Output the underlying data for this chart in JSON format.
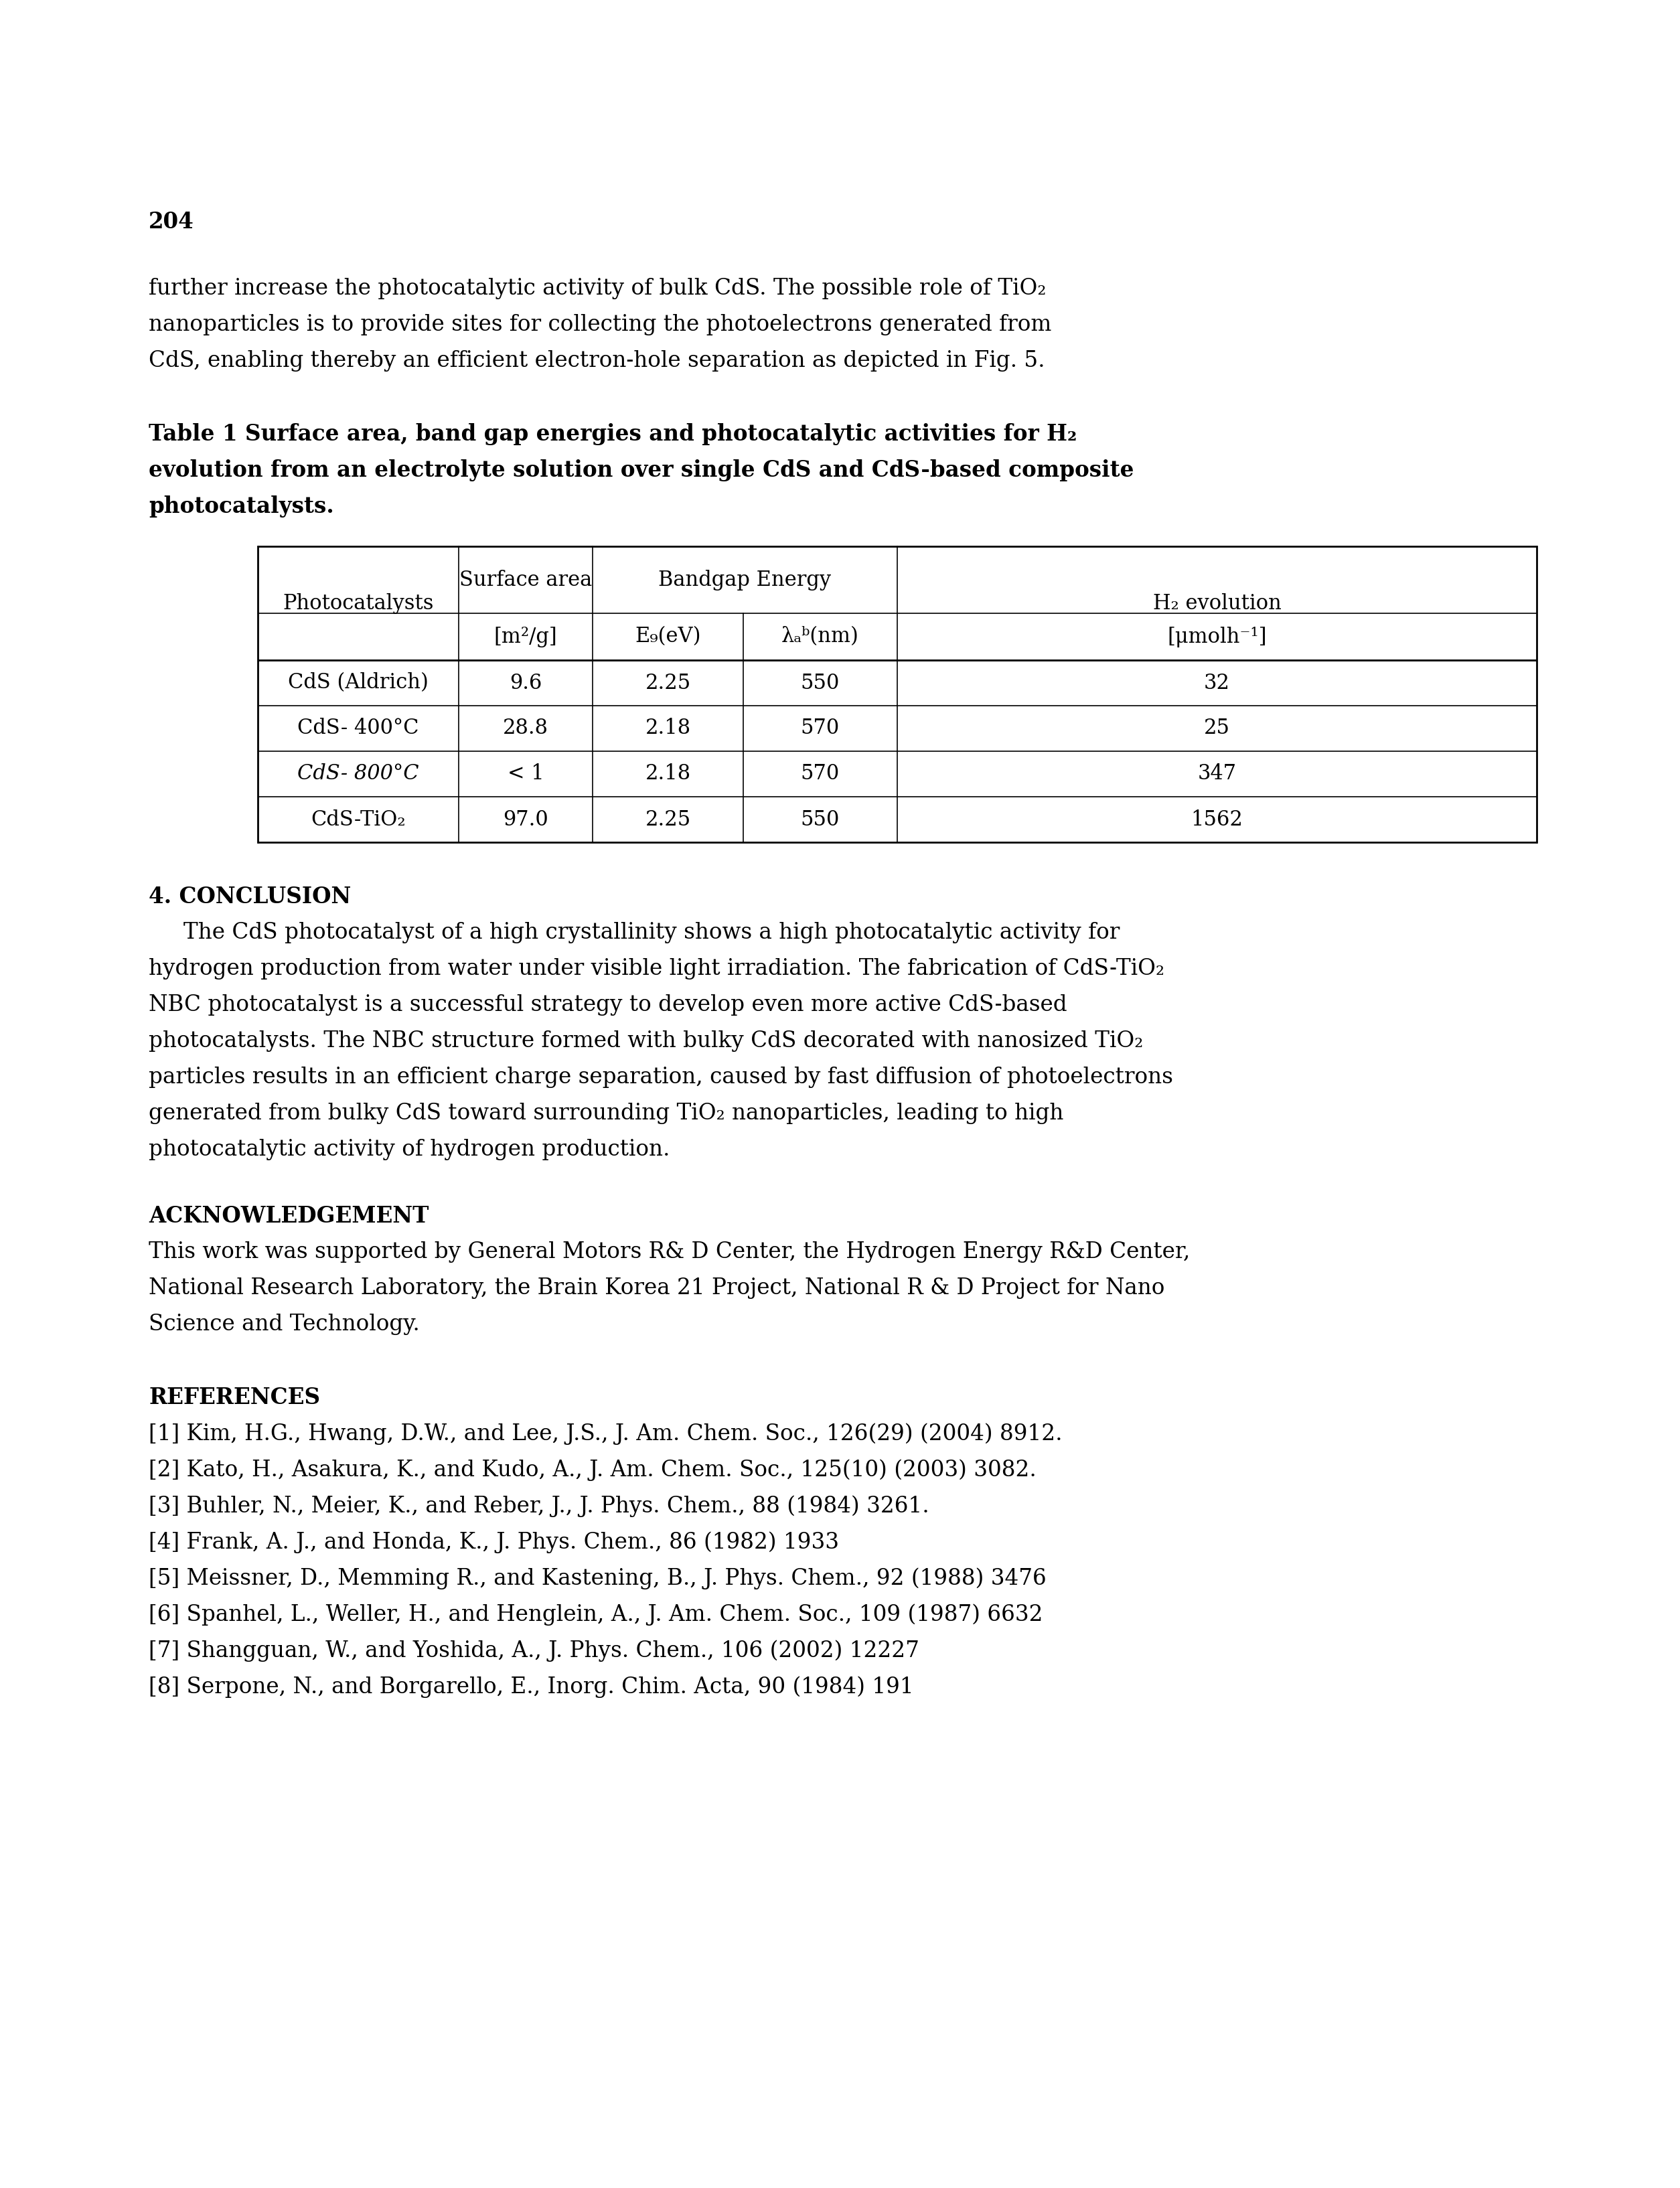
{
  "page_number": "204",
  "para1": [
    "further increase the photocatalytic activity of bulk CdS. The possible role of TiO₂",
    "nanoparticles is to provide sites for collecting the photoelectrons generated from",
    "CdS, enabling thereby an efficient electron-hole separation as depicted in Fig. 5."
  ],
  "cap": [
    "Table 1 Surface area, band gap energies and photocatalytic activities for H₂",
    "evolution from an electrolyte solution over single CdS and CdS-based composite",
    "photocatalysts."
  ],
  "col_photocatalysts": [
    "CdS (Aldrich)",
    "CdS- 400°C",
    "CdS- 800°C",
    "CdS-TiO₂"
  ],
  "col_surface": [
    "9.6",
    "28.8",
    "< 1",
    "97.0"
  ],
  "col_eg": [
    "2.25",
    "2.18",
    "2.18",
    "2.25"
  ],
  "col_lambda": [
    "550",
    "570",
    "570",
    "550"
  ],
  "col_h2": [
    "32",
    "25",
    "347",
    "1562"
  ],
  "col3_italic": [
    false,
    false,
    true,
    false
  ],
  "sec4_title": "4. CONCLUSION",
  "sec4_lines": [
    "     The CdS photocatalyst of a high crystallinity shows a high photocatalytic activity for",
    "hydrogen production from water under visible light irradiation. The fabrication of CdS-TiO₂",
    "NBC photocatalyst is a successful strategy to develop even more active CdS-based",
    "photocatalysts. The NBC structure formed with bulky CdS decorated with nanosized TiO₂",
    "particles results in an efficient charge separation, caused by fast diffusion of photoelectrons",
    "generated from bulky CdS toward surrounding TiO₂ nanoparticles, leading to high",
    "photocatalytic activity of hydrogen production."
  ],
  "ack_title": "ACKNOWLEDGEMENT",
  "ack_lines": [
    "This work was supported by General Motors R& D Center, the Hydrogen Energy R&D Center,",
    "National Research Laboratory, the Brain Korea 21 Project, National R & D Project for Nano",
    "Science and Technology."
  ],
  "ref_title": "REFERENCES",
  "ref_lines": [
    "[1] Kim, H.G., Hwang, D.W., and Lee, J.S., J. Am. Chem. Soc., 126(29) (2004) 8912.",
    "[2] Kato, H., Asakura, K., and Kudo, A., J. Am. Chem. Soc., 125(10) (2003) 3082.",
    "[3] Buhler, N., Meier, K., and Reber, J., J. Phys. Chem., 88 (1984) 3261.",
    "[4] Frank, A. J., and Honda, K., J. Phys. Chem., 86 (1982) 1933",
    "[5] Meissner, D., Memming R., and Kastening, B., J. Phys. Chem., 92 (1988) 3476",
    "[6] Spanhel, L., Weller, H., and Henglein, A., J. Am. Chem. Soc., 109 (1987) 6632",
    "[7] Shangguan, W., and Yoshida, A., J. Phys. Chem., 106 (2002) 12227",
    "[8] Serpone, N., and Borgarello, E., Inorg. Chim. Acta, 90 (1984) 191"
  ]
}
